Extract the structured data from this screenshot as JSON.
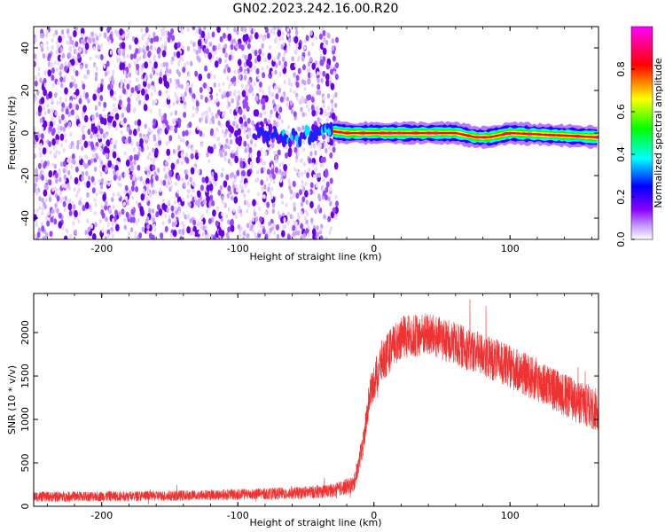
{
  "title": "GN02.2023.242.16.00.R20",
  "chart_data": [
    {
      "type": "heatmap",
      "xlabel": "Height of straight line (km)",
      "ylabel": "Frequency (Hz)",
      "xlim": [
        -250,
        165
      ],
      "ylim": [
        -50,
        50
      ],
      "xticks": [
        -200,
        -100,
        0,
        100
      ],
      "xtick_labels": [
        "-200",
        "-100",
        "0",
        "100"
      ],
      "yticks": [
        -40,
        -20,
        0,
        20,
        40
      ],
      "ytick_labels": [
        "-40",
        "-20",
        "0",
        "20",
        "40"
      ],
      "colorbar": {
        "label": "Normalized spectral amplitude",
        "range": [
          0,
          1
        ],
        "ticks": [
          0,
          0.2,
          0.4,
          0.6,
          0.8
        ],
        "tick_labels": [
          "0.0",
          "0.2",
          "0.4",
          "0.6",
          "0.8"
        ],
        "colormap": [
          "#ffffff",
          "#8a00ff",
          "#0000ff",
          "#00ffff",
          "#00ff00",
          "#ffff00",
          "#ff0000",
          "#ff00ff"
        ]
      },
      "noise_region_x": [
        -250,
        -33
      ],
      "noise_amplitude": 0.1,
      "band_center_hz": [
        {
          "x": -85,
          "y": 0
        },
        {
          "x": -60,
          "y": -2
        },
        {
          "x": -45,
          "y": -1
        },
        {
          "x": -33,
          "y": 1
        },
        {
          "x": -20,
          "y": 0
        },
        {
          "x": 0,
          "y": 0
        },
        {
          "x": 60,
          "y": 0
        },
        {
          "x": 75,
          "y": -2
        },
        {
          "x": 85,
          "y": -2
        },
        {
          "x": 100,
          "y": 0
        },
        {
          "x": 165,
          "y": -2
        }
      ],
      "band_peak_amplitude": 0.95
    },
    {
      "type": "line",
      "xlabel": "Height of straight line (km)",
      "ylabel": "SNR (10 * v/v)",
      "xlim": [
        -250,
        165
      ],
      "ylim": [
        0,
        2450
      ],
      "xticks": [
        -200,
        -100,
        0,
        100
      ],
      "xtick_labels": [
        "-200",
        "-100",
        "0",
        "100"
      ],
      "yticks": [
        0,
        500,
        1000,
        1500,
        2000
      ],
      "ytick_labels": [
        "0",
        "500",
        "1000",
        "1500",
        "2000"
      ],
      "color": "#ee3333",
      "envelope": [
        {
          "x": -250,
          "mean": 110,
          "spread": 60
        },
        {
          "x": -150,
          "mean": 120,
          "spread": 60
        },
        {
          "x": -60,
          "mean": 150,
          "spread": 70
        },
        {
          "x": -30,
          "mean": 180,
          "spread": 80
        },
        {
          "x": -15,
          "mean": 250,
          "spread": 100
        },
        {
          "x": -8,
          "mean": 700,
          "spread": 150
        },
        {
          "x": -3,
          "mean": 1300,
          "spread": 200
        },
        {
          "x": 5,
          "mean": 1650,
          "spread": 250
        },
        {
          "x": 20,
          "mean": 1950,
          "spread": 250
        },
        {
          "x": 40,
          "mean": 1980,
          "spread": 250
        },
        {
          "x": 80,
          "mean": 1750,
          "spread": 250
        },
        {
          "x": 120,
          "mean": 1450,
          "spread": 250
        },
        {
          "x": 150,
          "mean": 1200,
          "spread": 250
        },
        {
          "x": 165,
          "mean": 1100,
          "spread": 250
        }
      ]
    }
  ]
}
